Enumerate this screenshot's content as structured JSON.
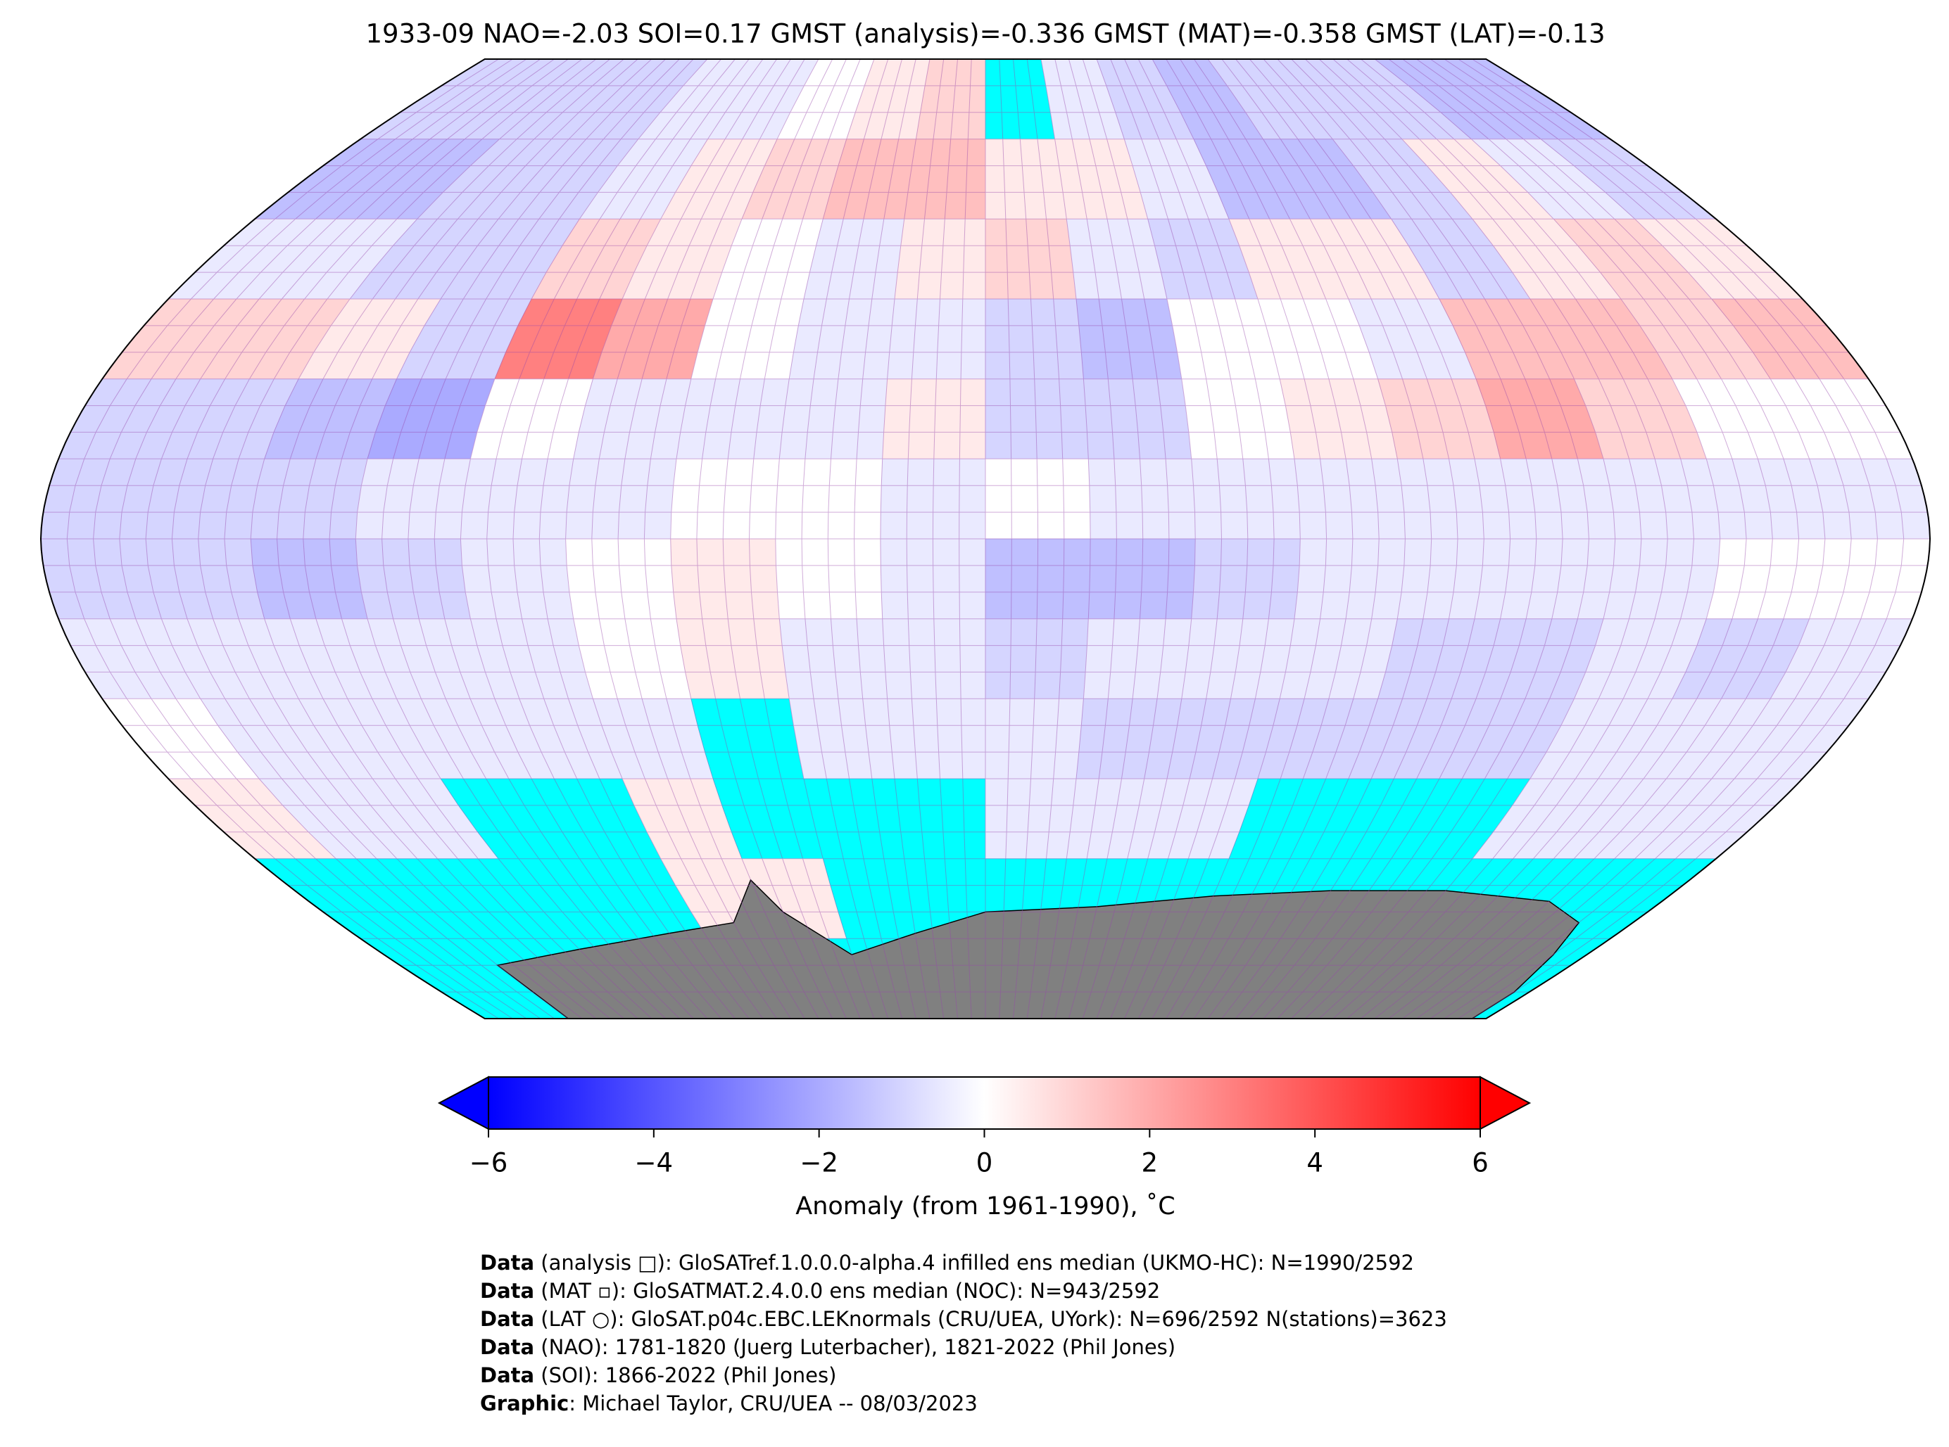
{
  "header": {
    "title": "1933-09 NAO=-2.03 SOI=0.17 GMST (analysis)=-0.336 GMST (MAT)=-0.358 GMST (LAT)=-0.13"
  },
  "map": {
    "projection": "robinson",
    "lat_edges": [
      90,
      75,
      60,
      45,
      30,
      15,
      0,
      -15,
      -30,
      -45,
      -60,
      -75,
      -90
    ],
    "lon_edges": [
      -180,
      -160,
      -140,
      -120,
      -100,
      -80,
      -60,
      -40,
      -20,
      0,
      20,
      40,
      60,
      80,
      100,
      120,
      140,
      160,
      180
    ],
    "missing_color": "#00ffff",
    "land_color": "#808080",
    "values": [
      [
        -1,
        -1,
        -1,
        -1,
        -0.5,
        -0.5,
        0,
        0.5,
        1,
        null,
        -0.5,
        -1,
        -1.5,
        -1,
        -1,
        -1,
        -1.5,
        -1.5
      ],
      [
        -1.5,
        -1.5,
        -1,
        -1,
        -0.5,
        0.5,
        1,
        1.5,
        1.5,
        0.5,
        0.5,
        -0.5,
        -1.5,
        -1.5,
        -1,
        0.5,
        -0.5,
        -1
      ],
      [
        -0.5,
        -0.5,
        -1,
        -1,
        1,
        0.5,
        0,
        -0.5,
        0.5,
        1,
        -0.5,
        -1,
        0.5,
        0.5,
        -1,
        0.5,
        1,
        0.5
      ],
      [
        1,
        1,
        0.5,
        -1,
        3,
        2,
        0,
        -0.5,
        -0.5,
        -1,
        -1.5,
        0,
        0,
        -0.5,
        1.5,
        1.5,
        1,
        1.5
      ],
      [
        -1,
        -1,
        -1.5,
        -2,
        0,
        -0.5,
        -0.5,
        -0.5,
        0.5,
        -1,
        -1,
        0,
        0.5,
        1,
        2,
        1,
        0,
        0
      ],
      [
        -1,
        -1,
        -1,
        -0.5,
        -0.5,
        -0.5,
        0,
        0,
        -0.5,
        0,
        -0.5,
        -0.5,
        -0.5,
        -0.5,
        -0.5,
        -0.5,
        -0.5,
        -0.5
      ],
      [
        -1,
        -1,
        -1.5,
        -1,
        -0.5,
        0,
        0.5,
        0,
        -0.5,
        -1.5,
        -1.5,
        -1,
        -0.5,
        -0.5,
        -0.5,
        -0.5,
        0,
        0
      ],
      [
        -0.5,
        -0.5,
        -0.5,
        -0.5,
        -0.5,
        0,
        0.5,
        -0.5,
        -0.5,
        -1,
        -0.5,
        -0.5,
        -0.5,
        -1,
        -1,
        -0.5,
        -1,
        -0.5
      ],
      [
        0,
        -0.5,
        -0.5,
        -0.5,
        -0.5,
        -0.5,
        null,
        -0.5,
        -0.5,
        -0.5,
        -1,
        -1,
        -1,
        -1,
        -1,
        -0.5,
        -0.5,
        -0.5
      ],
      [
        0.5,
        -0.5,
        -0.5,
        null,
        null,
        0.5,
        null,
        null,
        null,
        -0.5,
        -0.5,
        -0.5,
        null,
        null,
        null,
        -0.5,
        -0.5,
        -0.5
      ],
      [
        null,
        null,
        null,
        null,
        null,
        0.5,
        0.5,
        null,
        null,
        null,
        null,
        null,
        null,
        null,
        null,
        null,
        null,
        null
      ],
      [
        null,
        null,
        null,
        null,
        null,
        null,
        null,
        null,
        null,
        null,
        null,
        null,
        null,
        null,
        null,
        null,
        null,
        null
      ]
    ]
  },
  "colorbar": {
    "range": [
      -6,
      6
    ],
    "colors": [
      "#0000ff",
      "#ffffff",
      "#ff0000"
    ],
    "ticks": [
      {
        "value": -6,
        "label": "−6"
      },
      {
        "value": -4,
        "label": "−4"
      },
      {
        "value": -2,
        "label": "−2"
      },
      0,
      2,
      4,
      6
    ],
    "label": "Anomaly (from 1961-1990), ˚C"
  },
  "footer": [
    {
      "label": "Data",
      "text": " (analysis □): GloSATref.1.0.0.0-alpha.4 infilled ens median (UKMO-HC): N=1990/2592"
    },
    {
      "label": "Data",
      "text": " (MAT ▫): GloSATMAT.2.4.0.0 ens median (NOC): N=943/2592"
    },
    {
      "label": "Data",
      "text": " (LAT ○): GloSAT.p04c.EBC.LEKnormals (CRU/UEA, UYork): N=696/2592 N(stations)=3623"
    },
    {
      "label": "Data",
      "text": " (NAO): 1781-1820 (Juerg Luterbacher), 1821-2022 (Phil Jones)"
    },
    {
      "label": "Data",
      "text": " (SOI): 1866-2022 (Phil Jones)"
    },
    {
      "label": "Graphic",
      "text": ": Michael Taylor, CRU/UEA -- 08/03/2023"
    }
  ]
}
